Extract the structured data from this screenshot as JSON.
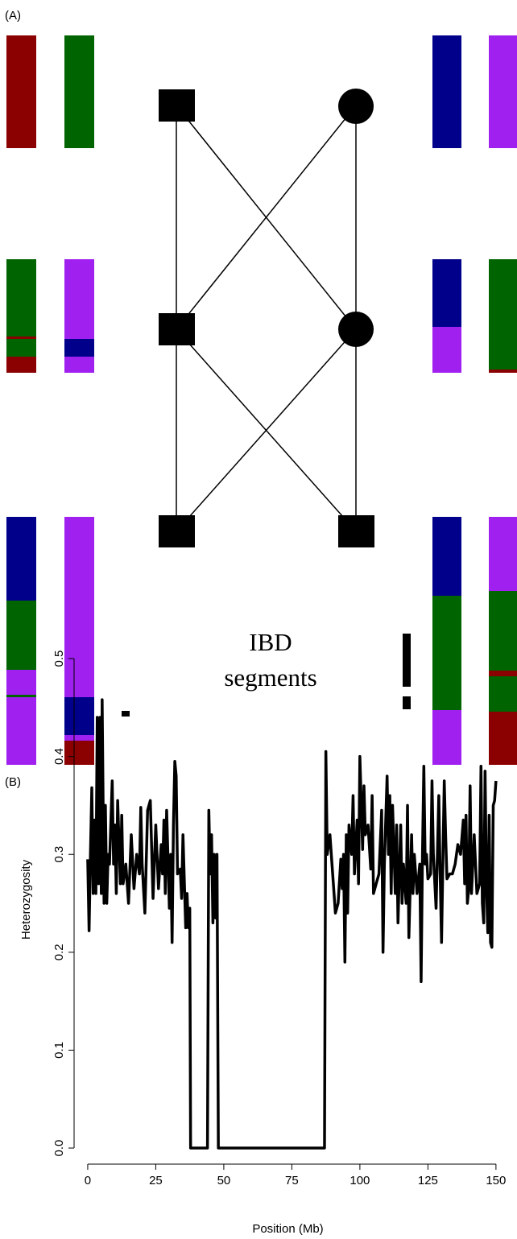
{
  "panel_a": {
    "label": "(A)",
    "annotation": [
      "IBD",
      "segments"
    ]
  },
  "chart_data": {
    "type": "line",
    "panel_label": "(B)",
    "x_label": "Position (Mb)",
    "y_label": "Heterozygosity",
    "xlim": [
      -5.6,
      152.7
    ],
    "ylim": [
      -0.0156,
      0.5066
    ],
    "xticks": [
      0,
      25,
      50,
      75,
      100,
      125,
      150
    ],
    "yticks": [
      {
        "value": 0,
        "label": "0.0"
      },
      0.1,
      0.2,
      0.3,
      0.4,
      0.5
    ],
    "color": "#000000",
    "x": [
      0,
      0.5,
      1,
      1.5,
      2,
      2.5,
      3,
      3.5,
      4,
      4.5,
      5,
      5.3,
      6,
      6.5,
      7,
      7.5,
      8,
      9,
      9.5,
      10,
      10.5,
      11,
      12,
      12.5,
      13,
      14,
      15,
      16,
      17,
      18,
      19,
      19.5,
      20,
      21,
      22,
      23,
      24,
      25,
      26,
      27,
      27.5,
      28,
      28.5,
      29,
      30,
      30.5,
      31,
      31.5,
      32,
      32.5,
      33,
      34,
      34.5,
      35,
      36,
      36.5,
      37,
      37.5,
      37.8,
      44,
      44.5,
      45,
      45.5,
      46,
      46.5,
      47,
      47.5,
      48,
      87,
      87.5,
      88,
      88.5,
      89,
      90,
      91,
      92,
      93,
      93.5,
      94,
      94.5,
      95,
      95.5,
      96,
      97,
      97.5,
      98,
      99,
      99.5,
      100,
      101,
      101.5,
      102,
      103,
      104,
      104.5,
      105,
      106,
      107,
      108,
      108.5,
      109,
      110,
      110.5,
      111,
      111.5,
      112,
      113,
      113.5,
      114,
      115,
      115.5,
      116,
      117,
      117.5,
      118,
      119,
      119.5,
      120,
      121,
      122,
      122.5,
      123,
      123.5,
      124,
      124.5,
      125,
      126,
      126.5,
      127,
      128,
      129,
      129.5,
      130,
      131,
      131.5,
      132,
      133,
      134,
      135,
      136,
      137,
      138,
      138.5,
      139,
      139.5,
      140,
      140.5,
      141,
      142,
      143,
      144,
      144.5,
      145,
      145.5,
      146,
      146.5,
      147,
      147.5,
      148,
      148.5,
      149,
      149.5,
      150
    ],
    "values": [
      0.295,
      0.222,
      0.3,
      0.368,
      0.26,
      0.335,
      0.26,
      0.44,
      0.27,
      0.44,
      0.26,
      0.458,
      0.25,
      0.35,
      0.25,
      0.3,
      0.29,
      0.375,
      0.29,
      0.33,
      0.26,
      0.355,
      0.27,
      0.34,
      0.27,
      0.29,
      0.25,
      0.32,
      0.265,
      0.3,
      0.28,
      0.348,
      0.29,
      0.24,
      0.345,
      0.355,
      0.255,
      0.33,
      0.265,
      0.31,
      0.28,
      0.335,
      0.26,
      0.345,
      0.245,
      0.3,
      0.21,
      0.33,
      0.395,
      0.38,
      0.28,
      0.285,
      0.255,
      0.32,
      0.225,
      0.26,
      0.225,
      0.245,
      0,
      0,
      0.345,
      0.28,
      0.32,
      0.23,
      0.3,
      0.235,
      0.3,
      0,
      0,
      0.405,
      0.3,
      0.31,
      0.32,
      0.28,
      0.24,
      0.25,
      0.295,
      0.265,
      0.3,
      0.19,
      0.32,
      0.24,
      0.33,
      0.3,
      0.36,
      0.28,
      0.335,
      0.27,
      0.4,
      0.305,
      0.37,
      0.32,
      0.33,
      0.285,
      0.36,
      0.26,
      0.27,
      0.28,
      0.345,
      0.2,
      0.29,
      0.38,
      0.3,
      0.36,
      0.26,
      0.35,
      0.26,
      0.33,
      0.23,
      0.33,
      0.25,
      0.29,
      0.25,
      0.35,
      0.215,
      0.32,
      0.26,
      0.3,
      0.26,
      0.29,
      0.17,
      0.3,
      0.39,
      0.29,
      0.3,
      0.275,
      0.28,
      0.375,
      0.3,
      0.245,
      0.36,
      0.28,
      0.21,
      0.375,
      0.32,
      0.275,
      0.28,
      0.28,
      0.29,
      0.31,
      0.3,
      0.335,
      0.27,
      0.34,
      0.25,
      0.265,
      0.37,
      0.26,
      0.32,
      0.26,
      0.27,
      0.39,
      0.25,
      0.23,
      0.385,
      0.27,
      0.22,
      0.34,
      0.21,
      0.205,
      0.35,
      0.355,
      0.375
    ]
  }
}
